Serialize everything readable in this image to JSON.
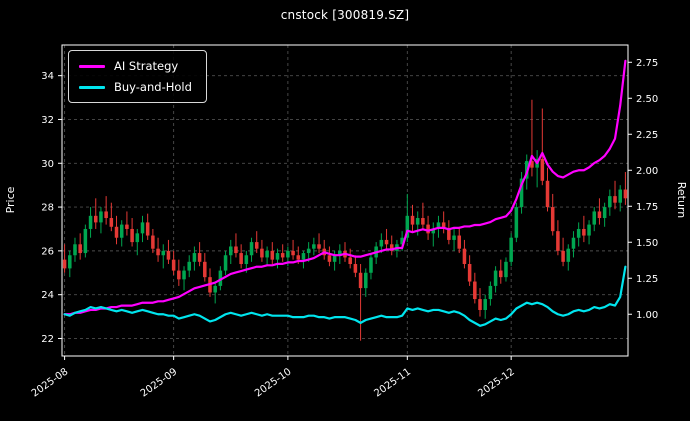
{
  "title": "cnstock [300819.SZ]",
  "axes": {
    "left_label": "Price",
    "right_label": "Return"
  },
  "legend": {
    "ai_label": "AI Strategy",
    "bh_label": "Buy-and-Hold"
  },
  "colors": {
    "background": "#000000",
    "text": "#ffffff",
    "grid": "#4d4d4d",
    "spine": "#ffffff",
    "up": "#00a650",
    "down": "#e53935",
    "ai": "#ff00ff",
    "bh": "#00e5ee"
  },
  "chart_data": {
    "type": "candlestick+line",
    "title": "cnstock [300819.SZ]",
    "xlabel": "",
    "ylabel_left": "Price",
    "ylabel_right": "Return",
    "grid": "dashed",
    "legend_position": "upper-left",
    "price_ticks": [
      22,
      24,
      26,
      28,
      30,
      32,
      34
    ],
    "return_ticks": [
      1.0,
      1.25,
      1.5,
      1.75,
      2.0,
      2.25,
      2.5,
      2.75
    ],
    "price_ylim": [
      21.2,
      35.4
    ],
    "return_ylim": [
      0.71,
      2.87
    ],
    "x_tick_labels": [
      "2025-08",
      "2025-09",
      "2025-10",
      "2025-11",
      "2025-12"
    ],
    "x_tick_indices": [
      0,
      21,
      43,
      66,
      86
    ],
    "dates": [
      "2025-08-01",
      "2025-08-04",
      "2025-08-05",
      "2025-08-06",
      "2025-08-07",
      "2025-08-08",
      "2025-08-11",
      "2025-08-12",
      "2025-08-13",
      "2025-08-14",
      "2025-08-15",
      "2025-08-18",
      "2025-08-19",
      "2025-08-20",
      "2025-08-21",
      "2025-08-22",
      "2025-08-25",
      "2025-08-26",
      "2025-08-27",
      "2025-08-28",
      "2025-08-29",
      "2025-09-01",
      "2025-09-02",
      "2025-09-03",
      "2025-09-04",
      "2025-09-05",
      "2025-09-08",
      "2025-09-09",
      "2025-09-10",
      "2025-09-11",
      "2025-09-12",
      "2025-09-15",
      "2025-09-16",
      "2025-09-17",
      "2025-09-18",
      "2025-09-19",
      "2025-09-22",
      "2025-09-23",
      "2025-09-24",
      "2025-09-25",
      "2025-09-26",
      "2025-09-29",
      "2025-09-30",
      "2025-10-01",
      "2025-10-02",
      "2025-10-03",
      "2025-10-06",
      "2025-10-07",
      "2025-10-08",
      "2025-10-09",
      "2025-10-10",
      "2025-10-13",
      "2025-10-14",
      "2025-10-15",
      "2025-10-16",
      "2025-10-17",
      "2025-10-20",
      "2025-10-21",
      "2025-10-22",
      "2025-10-23",
      "2025-10-24",
      "2025-10-27",
      "2025-10-28",
      "2025-10-29",
      "2025-10-30",
      "2025-10-31",
      "2025-11-03",
      "2025-11-04",
      "2025-11-05",
      "2025-11-06",
      "2025-11-07",
      "2025-11-10",
      "2025-11-11",
      "2025-11-12",
      "2025-11-13",
      "2025-11-14",
      "2025-11-17",
      "2025-11-18",
      "2025-11-19",
      "2025-11-20",
      "2025-11-21",
      "2025-11-24",
      "2025-11-25",
      "2025-11-26",
      "2025-11-27",
      "2025-11-28",
      "2025-12-01",
      "2025-12-02",
      "2025-12-03",
      "2025-12-04",
      "2025-12-05",
      "2025-12-08",
      "2025-12-09",
      "2025-12-10",
      "2025-12-11",
      "2025-12-12",
      "2025-12-15",
      "2025-12-16",
      "2025-12-17",
      "2025-12-18",
      "2025-12-19",
      "2025-12-22",
      "2025-12-23",
      "2025-12-24",
      "2025-12-25",
      "2025-12-26",
      "2025-12-29",
      "2025-12-30",
      "2025-12-31"
    ],
    "ohlc": [
      [
        25.6,
        26.3,
        25.0,
        25.2
      ],
      [
        25.2,
        26.0,
        24.8,
        25.8
      ],
      [
        25.8,
        26.6,
        25.5,
        26.3
      ],
      [
        26.3,
        26.8,
        25.6,
        25.9
      ],
      [
        25.9,
        27.2,
        25.7,
        27.0
      ],
      [
        27.0,
        28.0,
        26.6,
        27.6
      ],
      [
        27.6,
        28.4,
        27.0,
        27.3
      ],
      [
        27.3,
        28.0,
        26.8,
        27.8
      ],
      [
        27.8,
        28.5,
        27.2,
        27.5
      ],
      [
        27.5,
        28.2,
        26.9,
        27.1
      ],
      [
        27.1,
        27.6,
        26.3,
        26.6
      ],
      [
        26.6,
        27.4,
        26.2,
        27.2
      ],
      [
        27.2,
        27.8,
        26.7,
        27.0
      ],
      [
        27.0,
        27.5,
        26.2,
        26.4
      ],
      [
        26.4,
        27.0,
        25.8,
        26.8
      ],
      [
        26.8,
        27.6,
        26.4,
        27.3
      ],
      [
        27.3,
        27.7,
        26.5,
        26.7
      ],
      [
        26.7,
        27.0,
        25.9,
        26.1
      ],
      [
        26.1,
        26.6,
        25.5,
        25.8
      ],
      [
        25.8,
        26.3,
        25.2,
        26.0
      ],
      [
        26.0,
        26.5,
        25.4,
        25.6
      ],
      [
        25.6,
        26.0,
        24.9,
        25.1
      ],
      [
        25.1,
        25.6,
        24.4,
        24.7
      ],
      [
        24.7,
        25.3,
        24.2,
        25.1
      ],
      [
        25.1,
        25.8,
        24.8,
        25.5
      ],
      [
        25.5,
        26.2,
        25.1,
        25.9
      ],
      [
        25.9,
        26.4,
        25.3,
        25.5
      ],
      [
        25.5,
        25.9,
        24.6,
        24.8
      ],
      [
        24.8,
        25.2,
        23.9,
        24.1
      ],
      [
        24.1,
        24.6,
        23.6,
        24.4
      ],
      [
        24.4,
        25.3,
        24.2,
        25.1
      ],
      [
        25.1,
        26.0,
        24.9,
        25.8
      ],
      [
        25.8,
        26.5,
        25.4,
        26.2
      ],
      [
        26.2,
        26.8,
        25.7,
        25.9
      ],
      [
        25.9,
        26.3,
        25.2,
        25.4
      ],
      [
        25.4,
        26.0,
        25.0,
        25.8
      ],
      [
        25.8,
        26.6,
        25.5,
        26.4
      ],
      [
        26.4,
        26.9,
        25.9,
        26.1
      ],
      [
        26.1,
        26.5,
        25.5,
        25.7
      ],
      [
        25.7,
        26.2,
        25.3,
        26.0
      ],
      [
        26.0,
        26.4,
        25.4,
        25.6
      ],
      [
        25.6,
        26.1,
        25.2,
        25.9
      ],
      [
        25.9,
        26.3,
        25.5,
        25.7
      ],
      [
        25.7,
        26.2,
        25.3,
        26.0
      ],
      [
        26.0,
        26.5,
        25.6,
        25.8
      ],
      [
        25.8,
        26.2,
        25.4,
        25.6
      ],
      [
        25.6,
        26.0,
        25.2,
        25.9
      ],
      [
        25.9,
        26.4,
        25.5,
        26.1
      ],
      [
        26.1,
        26.6,
        25.8,
        26.3
      ],
      [
        26.3,
        26.8,
        25.9,
        26.1
      ],
      [
        26.1,
        26.5,
        25.6,
        25.8
      ],
      [
        25.8,
        26.2,
        25.3,
        25.5
      ],
      [
        25.5,
        26.0,
        25.1,
        25.8
      ],
      [
        25.8,
        26.3,
        25.4,
        26.0
      ],
      [
        26.0,
        26.4,
        25.5,
        25.7
      ],
      [
        25.7,
        26.1,
        25.2,
        25.4
      ],
      [
        25.4,
        25.8,
        24.8,
        25.0
      ],
      [
        25.0,
        25.4,
        21.9,
        24.3
      ],
      [
        24.3,
        25.2,
        23.9,
        25.0
      ],
      [
        25.0,
        25.9,
        24.7,
        25.7
      ],
      [
        25.7,
        26.4,
        25.4,
        26.2
      ],
      [
        26.2,
        26.8,
        25.9,
        26.5
      ],
      [
        26.5,
        27.0,
        26.1,
        26.3
      ],
      [
        26.3,
        26.7,
        25.8,
        26.0
      ],
      [
        26.0,
        26.5,
        25.7,
        26.3
      ],
      [
        26.3,
        26.9,
        26.0,
        26.6
      ],
      [
        26.6,
        28.6,
        26.4,
        27.6
      ],
      [
        27.6,
        28.1,
        26.9,
        27.2
      ],
      [
        27.2,
        27.8,
        26.7,
        27.5
      ],
      [
        27.5,
        28.2,
        27.0,
        27.2
      ],
      [
        27.2,
        27.6,
        26.5,
        26.8
      ],
      [
        26.8,
        27.3,
        26.2,
        27.0
      ],
      [
        27.0,
        27.6,
        26.6,
        27.3
      ],
      [
        27.3,
        27.8,
        26.8,
        27.0
      ],
      [
        27.0,
        27.4,
        26.3,
        26.5
      ],
      [
        26.5,
        27.0,
        26.0,
        26.7
      ],
      [
        26.7,
        27.1,
        25.9,
        26.1
      ],
      [
        26.1,
        26.5,
        25.2,
        25.4
      ],
      [
        25.4,
        25.8,
        24.4,
        24.6
      ],
      [
        24.6,
        25.0,
        23.6,
        23.8
      ],
      [
        23.8,
        24.3,
        23.0,
        23.3
      ],
      [
        23.3,
        24.0,
        22.9,
        23.8
      ],
      [
        23.8,
        24.6,
        23.5,
        24.4
      ],
      [
        24.4,
        25.3,
        24.1,
        25.1
      ],
      [
        25.1,
        25.6,
        24.5,
        24.8
      ],
      [
        24.8,
        25.7,
        24.6,
        25.5
      ],
      [
        25.5,
        26.8,
        25.3,
        26.6
      ],
      [
        26.6,
        28.2,
        26.4,
        28.0
      ],
      [
        28.0,
        29.6,
        27.7,
        29.3
      ],
      [
        29.3,
        30.4,
        28.8,
        30.1
      ],
      [
        30.1,
        32.9,
        29.4,
        29.8
      ],
      [
        29.8,
        30.6,
        28.9,
        30.2
      ],
      [
        30.2,
        32.5,
        29.0,
        29.2
      ],
      [
        29.2,
        29.8,
        27.8,
        28.0
      ],
      [
        28.0,
        28.6,
        26.7,
        26.9
      ],
      [
        26.9,
        27.4,
        25.8,
        26.0
      ],
      [
        26.0,
        26.6,
        25.3,
        25.5
      ],
      [
        25.5,
        26.3,
        25.1,
        26.1
      ],
      [
        26.1,
        26.9,
        25.7,
        26.6
      ],
      [
        26.6,
        27.3,
        26.2,
        27.0
      ],
      [
        27.0,
        27.6,
        26.4,
        26.7
      ],
      [
        26.7,
        27.4,
        26.3,
        27.2
      ],
      [
        27.2,
        28.0,
        26.9,
        27.8
      ],
      [
        27.8,
        28.4,
        27.2,
        27.5
      ],
      [
        27.5,
        28.2,
        27.1,
        28.0
      ],
      [
        28.0,
        28.8,
        27.6,
        28.5
      ],
      [
        28.5,
        29.2,
        27.9,
        28.2
      ],
      [
        28.2,
        29.0,
        27.8,
        28.8
      ],
      [
        28.8,
        29.6,
        28.1,
        28.4
      ]
    ],
    "series": [
      {
        "id": "ai-strategy",
        "name": "AI Strategy",
        "axis": "return",
        "color": "#ff00ff",
        "values": [
          1.0,
          1.0,
          1.01,
          1.01,
          1.02,
          1.03,
          1.03,
          1.04,
          1.04,
          1.05,
          1.05,
          1.06,
          1.06,
          1.06,
          1.07,
          1.08,
          1.08,
          1.08,
          1.09,
          1.09,
          1.1,
          1.11,
          1.12,
          1.14,
          1.16,
          1.18,
          1.19,
          1.2,
          1.21,
          1.22,
          1.24,
          1.26,
          1.28,
          1.29,
          1.3,
          1.31,
          1.32,
          1.33,
          1.33,
          1.34,
          1.34,
          1.35,
          1.35,
          1.36,
          1.36,
          1.37,
          1.37,
          1.38,
          1.39,
          1.41,
          1.43,
          1.42,
          1.41,
          1.41,
          1.42,
          1.41,
          1.4,
          1.4,
          1.41,
          1.42,
          1.43,
          1.44,
          1.45,
          1.45,
          1.46,
          1.46,
          1.58,
          1.57,
          1.58,
          1.59,
          1.58,
          1.59,
          1.6,
          1.6,
          1.59,
          1.6,
          1.6,
          1.61,
          1.61,
          1.62,
          1.62,
          1.63,
          1.64,
          1.66,
          1.67,
          1.68,
          1.72,
          1.8,
          1.9,
          1.98,
          2.1,
          2.05,
          2.12,
          2.04,
          1.99,
          1.96,
          1.95,
          1.97,
          1.99,
          2.0,
          2.0,
          2.02,
          2.05,
          2.07,
          2.1,
          2.15,
          2.22,
          2.45,
          2.76
        ]
      },
      {
        "id": "buy-and-hold",
        "name": "Buy-and-Hold",
        "axis": "return",
        "color": "#00e5ee",
        "values": [
          1.0,
          0.99,
          1.01,
          1.02,
          1.03,
          1.05,
          1.04,
          1.05,
          1.04,
          1.03,
          1.02,
          1.03,
          1.02,
          1.01,
          1.02,
          1.03,
          1.02,
          1.01,
          1.0,
          1.0,
          0.99,
          0.99,
          0.97,
          0.98,
          0.99,
          1.0,
          0.99,
          0.97,
          0.95,
          0.96,
          0.98,
          1.0,
          1.01,
          1.0,
          0.99,
          1.0,
          1.01,
          1.0,
          0.99,
          1.0,
          0.99,
          0.99,
          0.99,
          0.99,
          0.98,
          0.98,
          0.98,
          0.99,
          0.99,
          0.98,
          0.98,
          0.97,
          0.98,
          0.98,
          0.98,
          0.97,
          0.96,
          0.94,
          0.96,
          0.97,
          0.98,
          0.99,
          0.98,
          0.98,
          0.98,
          0.99,
          1.04,
          1.03,
          1.04,
          1.03,
          1.02,
          1.03,
          1.03,
          1.02,
          1.01,
          1.02,
          1.01,
          0.99,
          0.96,
          0.94,
          0.92,
          0.93,
          0.95,
          0.97,
          0.96,
          0.97,
          1.0,
          1.04,
          1.06,
          1.08,
          1.07,
          1.08,
          1.07,
          1.05,
          1.02,
          1.0,
          0.99,
          1.0,
          1.02,
          1.03,
          1.02,
          1.03,
          1.05,
          1.04,
          1.05,
          1.07,
          1.06,
          1.12,
          1.33
        ]
      }
    ]
  }
}
